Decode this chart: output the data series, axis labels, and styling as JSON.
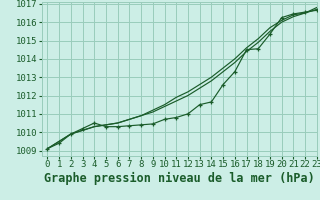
{
  "title": "Graphe pression niveau de la mer (hPa)",
  "xlim": [
    -0.5,
    23
  ],
  "ylim": [
    1008.7,
    1017.1
  ],
  "yticks": [
    1009,
    1010,
    1011,
    1012,
    1013,
    1014,
    1015,
    1016,
    1017
  ],
  "xticks": [
    0,
    1,
    2,
    3,
    4,
    5,
    6,
    7,
    8,
    9,
    10,
    11,
    12,
    13,
    14,
    15,
    16,
    17,
    18,
    19,
    20,
    21,
    22,
    23
  ],
  "bg_color": "#cceee6",
  "grid_color": "#99ccbb",
  "line_color": "#1a5c2a",
  "series_smooth1": [
    1009.1,
    1009.5,
    1009.9,
    1010.1,
    1010.3,
    1010.4,
    1010.5,
    1010.7,
    1010.9,
    1011.1,
    1011.4,
    1011.7,
    1012.0,
    1012.4,
    1012.8,
    1013.3,
    1013.8,
    1014.4,
    1014.9,
    1015.5,
    1016.0,
    1016.3,
    1016.5,
    1016.7
  ],
  "series_smooth2": [
    1009.1,
    1009.5,
    1009.9,
    1010.1,
    1010.3,
    1010.4,
    1010.5,
    1010.7,
    1010.9,
    1011.2,
    1011.5,
    1011.9,
    1012.2,
    1012.6,
    1013.0,
    1013.5,
    1014.0,
    1014.6,
    1015.1,
    1015.7,
    1016.1,
    1016.4,
    1016.5,
    1016.8
  ],
  "series_marker": [
    1009.1,
    1009.4,
    1009.9,
    1010.2,
    1010.5,
    1010.3,
    1010.3,
    1010.35,
    1010.4,
    1010.45,
    1010.7,
    1010.8,
    1011.0,
    1011.5,
    1011.65,
    1012.6,
    1013.3,
    1014.5,
    1014.55,
    1015.35,
    1016.25,
    1016.45,
    1016.55,
    1016.65
  ],
  "font_color": "#1a5c2a",
  "title_fontsize": 8.5,
  "tick_fontsize": 6.5
}
